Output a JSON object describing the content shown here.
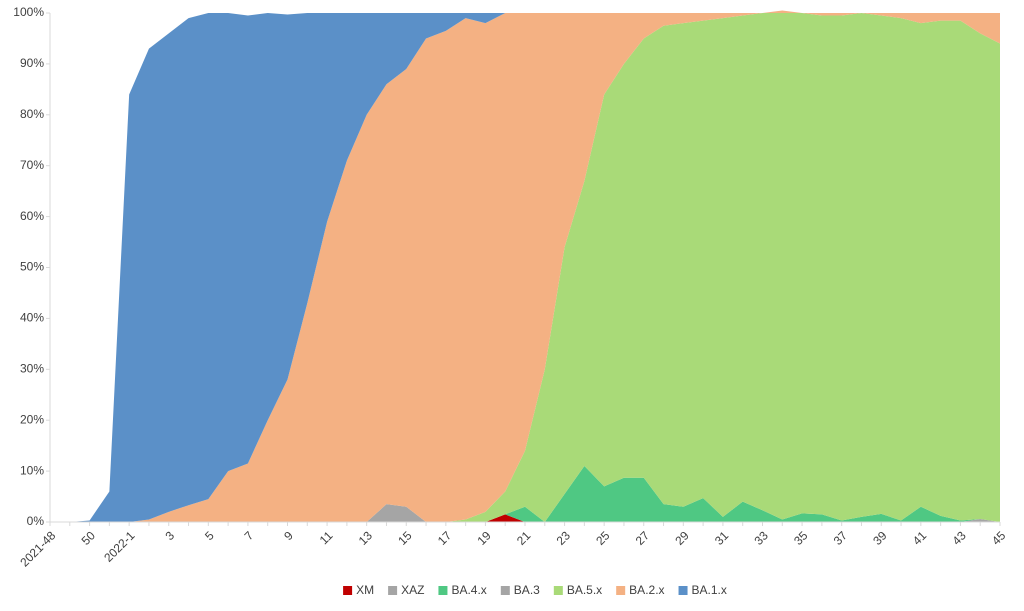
{
  "chart_data": {
    "type": "stacked_area",
    "categories": [
      "2021-48",
      null,
      "50",
      null,
      "2022-1",
      null,
      "3",
      null,
      "5",
      null,
      "7",
      null,
      "9",
      null,
      "11",
      null,
      "13",
      null,
      "15",
      null,
      "17",
      null,
      "19",
      null,
      "21",
      null,
      "23",
      null,
      "25",
      null,
      "27",
      null,
      "29",
      null,
      "31",
      null,
      "33",
      null,
      "35",
      null,
      "37",
      null,
      "39",
      null,
      "41",
      null,
      "43",
      null,
      "45"
    ],
    "series": [
      {
        "name": "XM",
        "color": "#c00000",
        "values": [
          0,
          0,
          0,
          0,
          0,
          0,
          0,
          0,
          0,
          0,
          0,
          0,
          0,
          0,
          0,
          0,
          0,
          0,
          0,
          0,
          0,
          0,
          0,
          1.5,
          0,
          0,
          0,
          0,
          0,
          0,
          0,
          0,
          0,
          0,
          0,
          0,
          0,
          0,
          0,
          0,
          0,
          0,
          0,
          0,
          0,
          0,
          0,
          0,
          0
        ]
      },
      {
        "name": "XAZ",
        "color": "#a5a5a5",
        "values": [
          0,
          0,
          0,
          0,
          0,
          0,
          0,
          0,
          0,
          0,
          0,
          0,
          0,
          0,
          0,
          0,
          0,
          0,
          0,
          0,
          0,
          0,
          0,
          0,
          0,
          0,
          0,
          0,
          0,
          0,
          0,
          0,
          0,
          0,
          0,
          0,
          0,
          0,
          0,
          0,
          0,
          0,
          0,
          0,
          0,
          0,
          0,
          0.6,
          0
        ]
      },
      {
        "name": "BA.4.x",
        "color": "#4fc883",
        "values": [
          0,
          0,
          0,
          0,
          0,
          0,
          0,
          0,
          0,
          0,
          0,
          0,
          0,
          0,
          0,
          0,
          0,
          0,
          0,
          0,
          0,
          0,
          0,
          0,
          3,
          0,
          5.5,
          11,
          7,
          8.7,
          8.7,
          3.5,
          3,
          4.7,
          1,
          4,
          2.3,
          0.5,
          1.7,
          1.5,
          0.3,
          1,
          1.6,
          0.3,
          3,
          1.2,
          0.3,
          0,
          0
        ]
      },
      {
        "name": "BA.3",
        "color": "#a5a5a5",
        "values": [
          0,
          0,
          0,
          0,
          0,
          0,
          0,
          0,
          0,
          0,
          0,
          0,
          0,
          0,
          0,
          0,
          0,
          3.5,
          3,
          0,
          0,
          0,
          0,
          0,
          0,
          0,
          0,
          0,
          0,
          0,
          0,
          0,
          0,
          0,
          0,
          0,
          0,
          0,
          0,
          0,
          0,
          0,
          0,
          0,
          0,
          0,
          0,
          0,
          0
        ]
      },
      {
        "name": "BA.5.x",
        "color": "#a9da78",
        "values": [
          0,
          0,
          0,
          0,
          0,
          0,
          0,
          0,
          0,
          0,
          0,
          0,
          0,
          0,
          0,
          0,
          0,
          0,
          0,
          0,
          0,
          0.5,
          2,
          4.5,
          11,
          30,
          48.5,
          56,
          77,
          81.3,
          86.3,
          94,
          95,
          93.8,
          98,
          95.5,
          97.7,
          99.5,
          98.3,
          98,
          99.2,
          99,
          97.9,
          98.7,
          95,
          97.3,
          98.2,
          95.4,
          94
        ]
      },
      {
        "name": "BA.2.x",
        "color": "#f4b183",
        "values": [
          0,
          0,
          0,
          0,
          0,
          0.5,
          2,
          3.3,
          4.5,
          10,
          11.5,
          20,
          28,
          43,
          59,
          71,
          80,
          82.5,
          86,
          95,
          96.5,
          98.5,
          96,
          94,
          86,
          70,
          46,
          33,
          16,
          10,
          5,
          2.5,
          2,
          1.5,
          1,
          0.5,
          0,
          0.5,
          0,
          0.5,
          0.5,
          0,
          0.5,
          1,
          2,
          1.5,
          1.5,
          4,
          6
        ]
      },
      {
        "name": "BA.1.x",
        "color": "#5b90c8",
        "values": [
          0,
          0,
          0.3,
          6,
          84,
          92.5,
          94,
          95.7,
          95.5,
          90,
          88,
          80,
          71.7,
          57,
          41,
          29,
          20,
          14,
          11,
          5,
          3.5,
          1,
          2,
          0,
          0,
          0,
          0,
          0,
          0,
          0,
          0,
          0,
          0,
          0,
          0,
          0,
          0,
          0,
          0,
          0,
          0,
          0,
          0,
          0,
          0,
          0,
          0,
          0,
          0
        ]
      }
    ],
    "ylim": [
      0,
      100
    ],
    "yticks": [
      {
        "value": 0,
        "label": "0%"
      },
      {
        "value": 10,
        "label": "10%"
      },
      {
        "value": 20,
        "label": "20%"
      },
      {
        "value": 30,
        "label": "30%"
      },
      {
        "value": 40,
        "label": "40%"
      },
      {
        "value": 50,
        "label": "50%"
      },
      {
        "value": 60,
        "label": "60%"
      },
      {
        "value": 70,
        "label": "70%"
      },
      {
        "value": 80,
        "label": "80%"
      },
      {
        "value": 90,
        "label": "90%"
      },
      {
        "value": 100,
        "label": "100%"
      }
    ],
    "legend": "bottom"
  }
}
